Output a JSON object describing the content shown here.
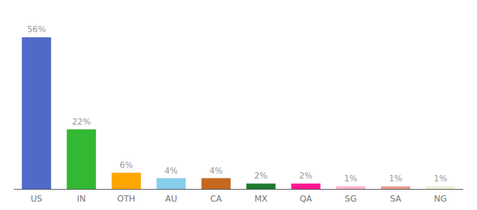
{
  "chart_data": {
    "type": "bar",
    "categories": [
      "US",
      "IN",
      "OTH",
      "AU",
      "CA",
      "MX",
      "QA",
      "SG",
      "SA",
      "NG"
    ],
    "values": [
      56,
      22,
      6,
      4,
      4,
      2,
      2,
      1,
      1,
      1
    ],
    "value_labels": [
      "56%",
      "22%",
      "6%",
      "4%",
      "4%",
      "2%",
      "2%",
      "1%",
      "1%",
      "1%"
    ],
    "colors": [
      "#4F6AC8",
      "#33B833",
      "#FFA500",
      "#87CEEB",
      "#C46820",
      "#1E7A2E",
      "#FF1493",
      "#FFB0C8",
      "#E8998A",
      "#F0EDD8"
    ],
    "ylim": [
      0,
      62
    ],
    "data_labels": true,
    "tick_labels": "x",
    "grid": false
  }
}
